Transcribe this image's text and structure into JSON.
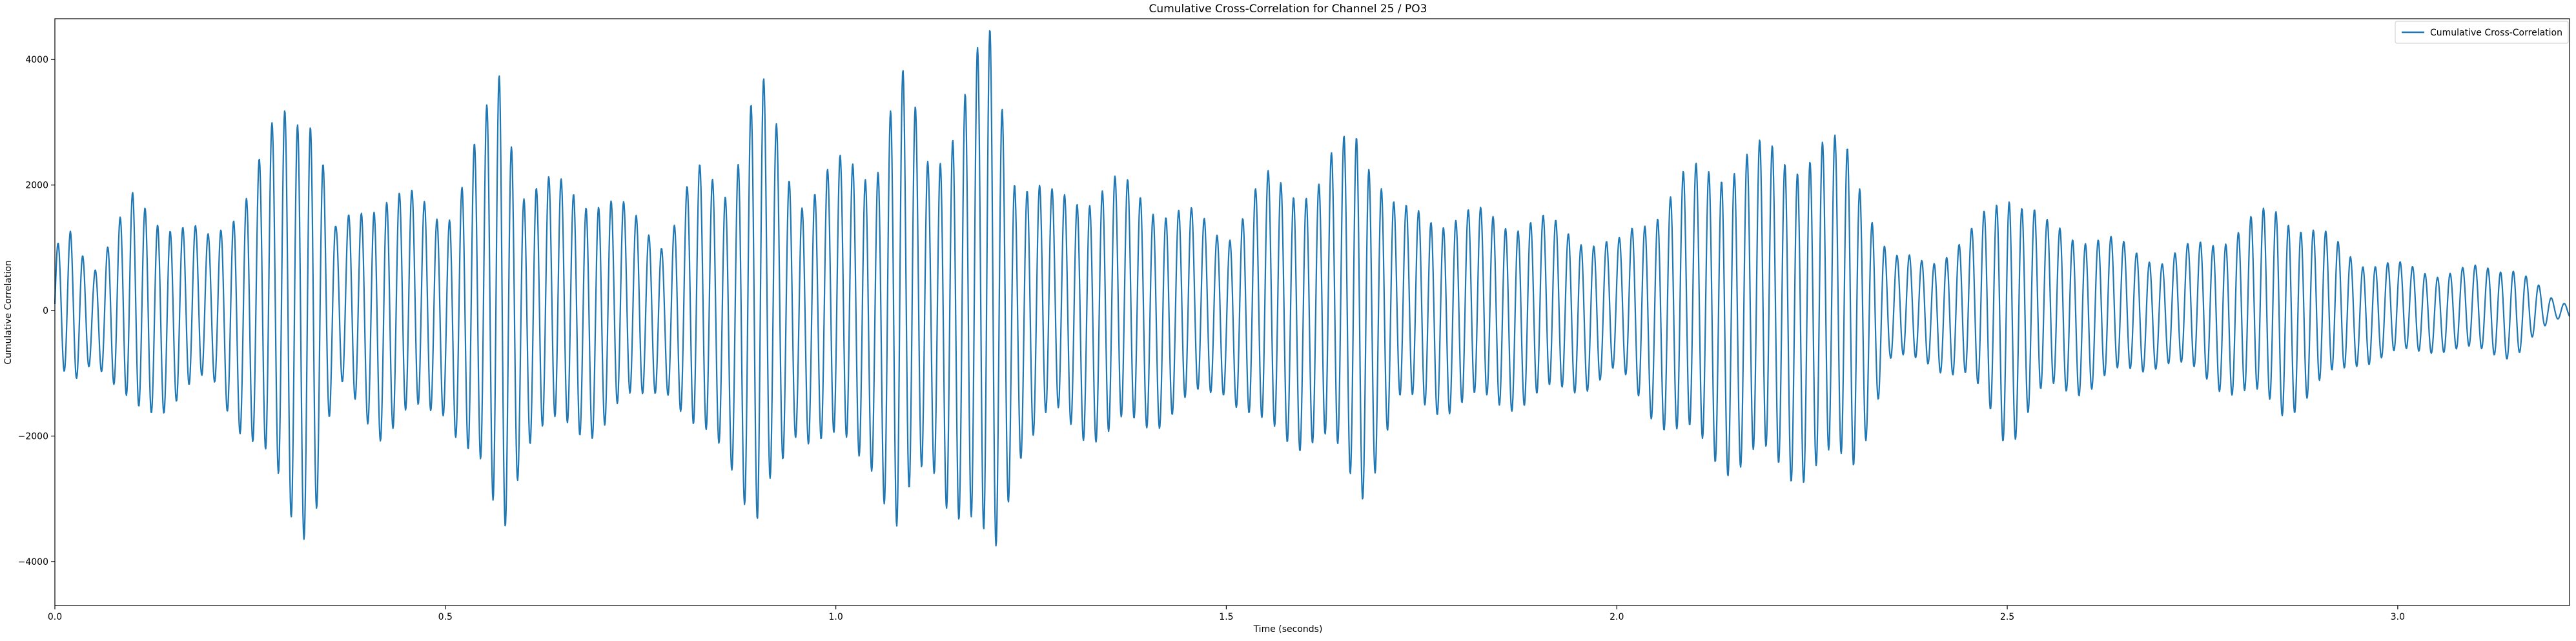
{
  "chart_data": {
    "type": "line",
    "title": "Cumulative Cross-Correlation for Channel 25 / PO3",
    "xlabel": "Time (seconds)",
    "ylabel": "Cumulative Correlation",
    "xlim": [
      0.0,
      3.22
    ],
    "ylim": [
      -4700,
      4650
    ],
    "xticks": [
      0.0,
      0.5,
      1.0,
      1.5,
      2.0,
      2.5,
      3.0
    ],
    "xtick_labels": [
      "0.0",
      "0.5",
      "1.0",
      "1.5",
      "2.0",
      "2.5",
      "3.0"
    ],
    "yticks": [
      -4000,
      -2000,
      0,
      2000,
      4000
    ],
    "ytick_labels": [
      "−4000",
      "−2000",
      "0",
      "2000",
      "4000"
    ],
    "grid": false,
    "legend_position": "upper right",
    "series": [
      {
        "name": "Cumulative Cross-Correlation",
        "color": "#1f77b4",
        "carrier_hz": 62,
        "envelope_peaks": {
          "t": [
            0.0,
            0.02,
            0.05,
            0.1,
            0.15,
            0.2,
            0.25,
            0.3,
            0.33,
            0.36,
            0.42,
            0.5,
            0.55,
            0.57,
            0.6,
            0.7,
            0.78,
            0.82,
            0.86,
            0.9,
            0.95,
            1.0,
            1.05,
            1.08,
            1.12,
            1.2,
            1.23,
            1.28,
            1.35,
            1.45,
            1.5,
            1.55,
            1.62,
            1.67,
            1.72,
            1.8,
            1.9,
            2.0,
            2.08,
            2.15,
            2.25,
            2.3,
            2.35,
            2.4,
            2.45,
            2.5,
            2.55,
            2.6,
            2.7,
            2.8,
            2.85,
            2.95,
            3.05,
            3.15,
            3.2,
            3.22
          ],
          "a": [
            900,
            1200,
            700,
            1700,
            1400,
            1100,
            2000,
            3200,
            3300,
            1200,
            1900,
            1500,
            2800,
            3700,
            2000,
            1800,
            1100,
            2100,
            2000,
            3600,
            1800,
            2200,
            2300,
            3700,
            2300,
            4200,
            2200,
            1700,
            2000,
            1500,
            1200,
            2000,
            2000,
            2900,
            1500,
            1500,
            1400,
            1000,
            2000,
            2400,
            2500,
            2500,
            800,
            800,
            1100,
            2000,
            1300,
            1200,
            800,
            1300,
            1600,
            800,
            600,
            700,
            150,
            100
          ]
        }
      }
    ]
  }
}
